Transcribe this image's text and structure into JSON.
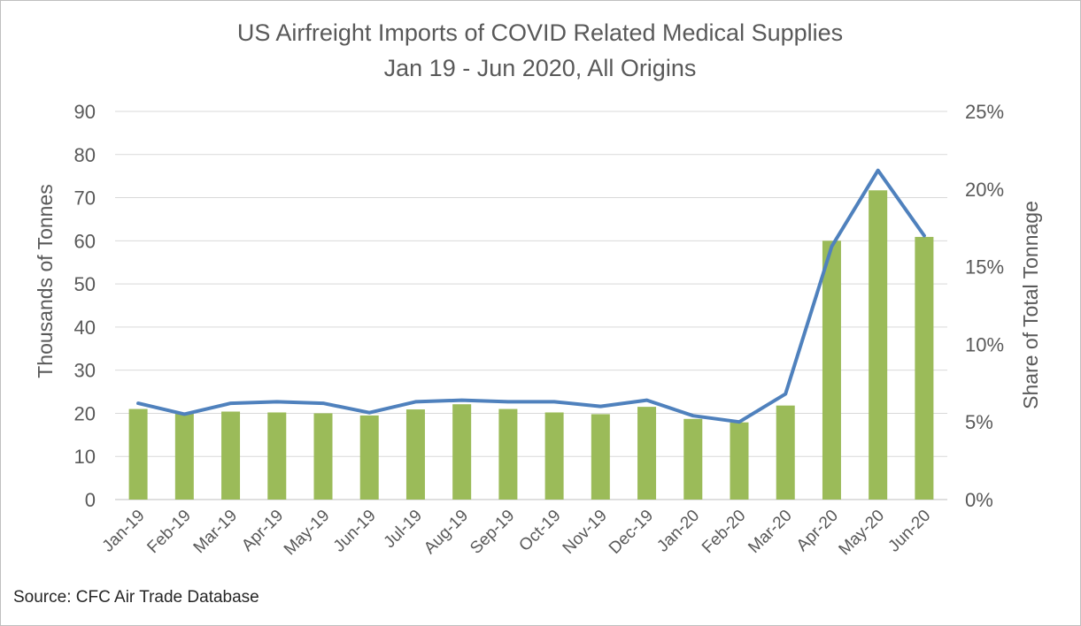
{
  "chart_data": {
    "type": "bar+line",
    "title": "US Airfreight Imports of COVID Related Medical Supplies",
    "subtitle": "Jan 19 - Jun 2020, All Origins",
    "categories": [
      "Jan-19",
      "Feb-19",
      "Mar-19",
      "Apr-19",
      "May-19",
      "Jun-19",
      "Jul-19",
      "Aug-19",
      "Sep-19",
      "Oct-19",
      "Nov-19",
      "Dec-19",
      "Jan-20",
      "Feb-20",
      "Mar-20",
      "Apr-20",
      "May-20",
      "Jun-20"
    ],
    "series": [
      {
        "type": "bar",
        "axis": "left",
        "color": "#9bbb59",
        "values": [
          21.0,
          20.0,
          20.4,
          20.2,
          20.0,
          19.5,
          20.9,
          22.1,
          21.0,
          20.2,
          19.8,
          21.5,
          18.7,
          17.9,
          21.8,
          60.0,
          71.7,
          60.9
        ]
      },
      {
        "type": "line",
        "axis": "right",
        "color": "#4f81bd",
        "values": [
          0.062,
          0.055,
          0.062,
          0.063,
          0.062,
          0.056,
          0.063,
          0.064,
          0.063,
          0.063,
          0.06,
          0.064,
          0.054,
          0.05,
          0.068,
          0.163,
          0.212,
          0.17
        ]
      }
    ],
    "y_left": {
      "label": "Thousands of Tonnes",
      "min": 0,
      "max": 90,
      "step": 10,
      "ticks": [
        "0",
        "10",
        "20",
        "30",
        "40",
        "50",
        "60",
        "70",
        "80",
        "90"
      ]
    },
    "y_right": {
      "label": "Share of Total Tonnage",
      "min": 0,
      "max": 0.25,
      "step": 0.05,
      "ticks": [
        "0%",
        "5%",
        "10%",
        "15%",
        "20%",
        "25%"
      ]
    },
    "grid": true,
    "legend": "none",
    "source": "Source: CFC Air Trade Database"
  }
}
